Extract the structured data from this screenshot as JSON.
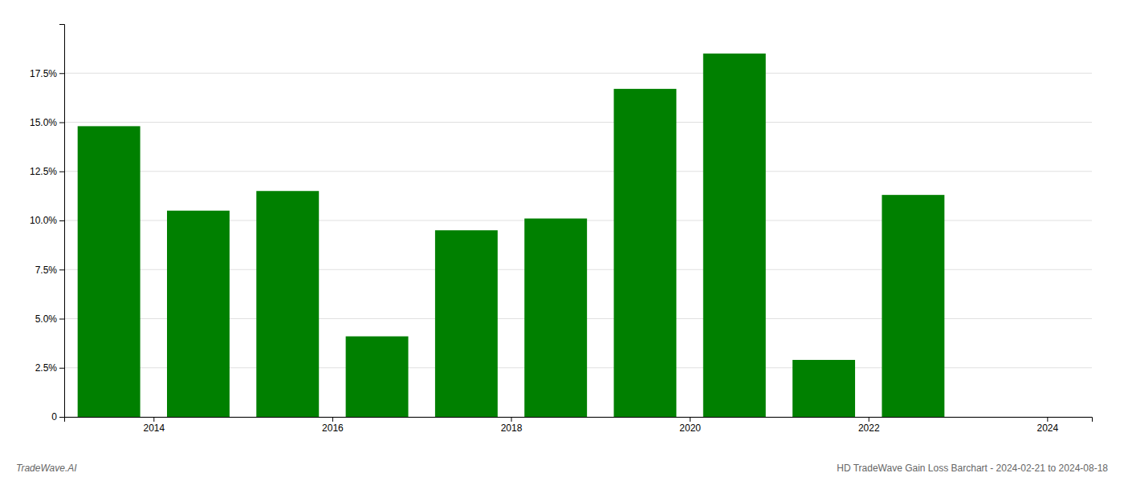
{
  "chart_data": {
    "type": "bar",
    "x": [
      2013.5,
      2014.5,
      2015.5,
      2016.5,
      2017.5,
      2018.5,
      2019.5,
      2020.5,
      2021.5,
      2022.5,
      2023.5
    ],
    "values": [
      0.148,
      0.105,
      0.115,
      0.041,
      0.095,
      0.101,
      0.167,
      0.185,
      0.029,
      0.113,
      0.0
    ],
    "color": "#008000",
    "xlim": [
      2013.0,
      2024.5
    ],
    "xticks": [
      2014,
      2016,
      2018,
      2020,
      2022,
      2024
    ],
    "ylim": [
      0,
      0.2
    ],
    "yticks": [
      0.0,
      {
        "value": 0.025,
        "label": "2.5%"
      },
      {
        "value": 0.05,
        "label": "5.0%"
      },
      {
        "value": 0.075,
        "label": "7.5%"
      },
      {
        "value": 0.1,
        "label": "10.0%"
      },
      {
        "value": 0.125,
        "label": "12.5%"
      },
      {
        "value": 0.15,
        "label": "15.0%"
      },
      {
        "value": 0.175,
        "label": "17.5%"
      }
    ],
    "grid": true,
    "annotations": [
      "TradeWave.AI",
      "HD TradeWave Gain Loss Barchart - 2024-02-21 to 2024-08-18"
    ]
  }
}
